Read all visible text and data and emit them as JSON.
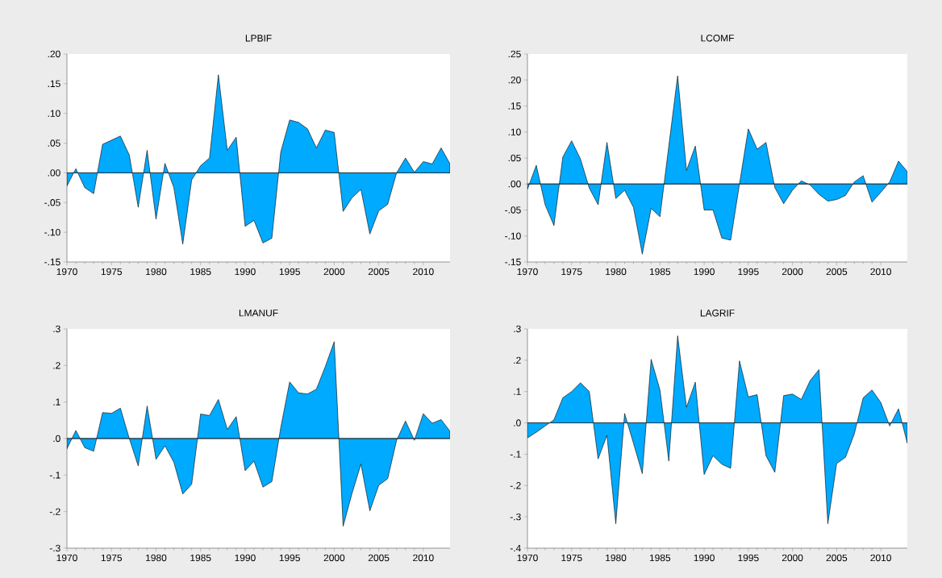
{
  "chart_data": [
    {
      "type": "area",
      "title": "LPBIF",
      "x": [
        1970,
        1971,
        1972,
        1973,
        1974,
        1975,
        1976,
        1977,
        1978,
        1979,
        1980,
        1981,
        1982,
        1983,
        1984,
        1985,
        1986,
        1987,
        1988,
        1989,
        1990,
        1991,
        1992,
        1993,
        1994,
        1995,
        1996,
        1997,
        1998,
        1999,
        2000,
        2001,
        2002,
        2003,
        2004,
        2005,
        2006,
        2007,
        2008,
        2009,
        2010,
        2011,
        2012,
        2013
      ],
      "values": [
        -0.022,
        0.007,
        -0.025,
        -0.035,
        0.048,
        0.055,
        0.062,
        0.03,
        -0.058,
        0.038,
        -0.078,
        0.016,
        -0.025,
        -0.12,
        -0.012,
        0.012,
        0.025,
        0.165,
        0.038,
        0.06,
        -0.09,
        -0.08,
        -0.118,
        -0.11,
        0.035,
        0.089,
        0.085,
        0.074,
        0.042,
        0.072,
        0.068,
        -0.065,
        -0.042,
        -0.028,
        -0.103,
        -0.064,
        -0.053,
        0.0,
        0.025,
        0.001,
        0.019,
        0.015,
        0.042,
        0.015
      ],
      "color": "#00aaff",
      "xlim": [
        1970,
        2013
      ],
      "xticks": [
        1970,
        1975,
        1980,
        1985,
        1990,
        1995,
        2000,
        2005,
        2010
      ],
      "ylim": [
        -0.15,
        0.2
      ],
      "yticks": [
        {
          "value": -0.15,
          "label": "-.15"
        },
        {
          "value": -0.1,
          "label": "-.10"
        },
        {
          "value": -0.05,
          "label": "-.05"
        },
        {
          "value": 0,
          "label": ".00"
        },
        {
          "value": 0.05,
          "label": ".05"
        },
        {
          "value": 0.1,
          "label": ".10"
        },
        {
          "value": 0.15,
          "label": ".15"
        },
        {
          "value": 0.2,
          "label": ".20"
        }
      ],
      "ref_lines": [
        {
          "axis": "y",
          "value": 0,
          "color": "#1f3a4a"
        }
      ]
    },
    {
      "type": "area",
      "title": "LCOMF",
      "x": [
        1970,
        1971,
        1972,
        1973,
        1974,
        1975,
        1976,
        1977,
        1978,
        1979,
        1980,
        1981,
        1982,
        1983,
        1984,
        1985,
        1986,
        1987,
        1988,
        1989,
        1990,
        1991,
        1992,
        1993,
        1994,
        1995,
        1996,
        1997,
        1998,
        1999,
        2000,
        2001,
        2002,
        2003,
        2004,
        2005,
        2006,
        2007,
        2008,
        2009,
        2010,
        2011,
        2012,
        2013
      ],
      "values": [
        -0.01,
        0.036,
        -0.04,
        -0.08,
        0.052,
        0.083,
        0.048,
        -0.008,
        -0.04,
        0.08,
        -0.028,
        -0.012,
        -0.045,
        -0.135,
        -0.047,
        -0.063,
        0.073,
        0.208,
        0.026,
        0.073,
        -0.05,
        -0.05,
        -0.104,
        -0.108,
        0.0,
        0.106,
        0.067,
        0.08,
        -0.007,
        -0.038,
        -0.012,
        0.006,
        -0.002,
        -0.02,
        -0.033,
        -0.03,
        -0.022,
        0.004,
        0.016,
        -0.035,
        -0.016,
        0.004,
        0.044,
        0.024
      ],
      "color": "#00aaff",
      "xlim": [
        1970,
        2013
      ],
      "xticks": [
        1970,
        1975,
        1980,
        1985,
        1990,
        1995,
        2000,
        2005,
        2010
      ],
      "ylim": [
        -0.15,
        0.25
      ],
      "yticks": [
        {
          "value": -0.15,
          "label": "-.15"
        },
        {
          "value": -0.1,
          "label": "-.10"
        },
        {
          "value": -0.05,
          "label": "-.05"
        },
        {
          "value": 0,
          "label": ".00"
        },
        {
          "value": 0.05,
          "label": ".05"
        },
        {
          "value": 0.1,
          "label": ".10"
        },
        {
          "value": 0.15,
          "label": ".15"
        },
        {
          "value": 0.2,
          "label": ".20"
        },
        {
          "value": 0.25,
          "label": ".25"
        }
      ],
      "ref_lines": [
        {
          "axis": "y",
          "value": 0,
          "color": "#1f3a4a"
        }
      ]
    },
    {
      "type": "area",
      "title": "LMANUF",
      "x": [
        1970,
        1971,
        1972,
        1973,
        1974,
        1975,
        1976,
        1977,
        1978,
        1979,
        1980,
        1981,
        1982,
        1983,
        1984,
        1985,
        1986,
        1987,
        1988,
        1989,
        1990,
        1991,
        1992,
        1993,
        1994,
        1995,
        1996,
        1997,
        1998,
        1999,
        2000,
        2001,
        2002,
        2003,
        2004,
        2005,
        2006,
        2007,
        2008,
        2009,
        2010,
        2011,
        2012,
        2013
      ],
      "values": [
        -0.028,
        0.022,
        -0.025,
        -0.035,
        0.071,
        0.069,
        0.083,
        0.0,
        -0.075,
        0.089,
        -0.057,
        -0.02,
        -0.065,
        -0.152,
        -0.125,
        0.067,
        0.063,
        0.107,
        0.025,
        0.06,
        -0.088,
        -0.062,
        -0.133,
        -0.118,
        0.03,
        0.155,
        0.125,
        0.122,
        0.135,
        0.197,
        0.265,
        -0.24,
        -0.15,
        -0.07,
        -0.198,
        -0.128,
        -0.11,
        -0.005,
        0.048,
        -0.005,
        0.068,
        0.042,
        0.052,
        0.02
      ],
      "color": "#00aaff",
      "xlim": [
        1970,
        2013
      ],
      "xticks": [
        1970,
        1975,
        1980,
        1985,
        1990,
        1995,
        2000,
        2005,
        2010
      ],
      "ylim": [
        -0.3,
        0.3
      ],
      "yticks": [
        {
          "value": -0.3,
          "label": "-.3"
        },
        {
          "value": -0.2,
          "label": "-.2"
        },
        {
          "value": -0.1,
          "label": "-.1"
        },
        {
          "value": 0,
          "label": ".0"
        },
        {
          "value": 0.1,
          "label": ".1"
        },
        {
          "value": 0.2,
          "label": ".2"
        },
        {
          "value": 0.3,
          "label": ".3"
        }
      ],
      "ref_lines": [
        {
          "axis": "y",
          "value": 0,
          "color": "#1f3a4a"
        }
      ]
    },
    {
      "type": "area",
      "title": "LAGRIF",
      "x": [
        1970,
        1971,
        1972,
        1973,
        1974,
        1975,
        1976,
        1977,
        1978,
        1979,
        1980,
        1981,
        1982,
        1983,
        1984,
        1985,
        1986,
        1987,
        1988,
        1989,
        1990,
        1991,
        1992,
        1993,
        1994,
        1995,
        1996,
        1997,
        1998,
        1999,
        2000,
        2001,
        2002,
        2003,
        2004,
        2005,
        2006,
        2007,
        2008,
        2009,
        2010,
        2011,
        2012,
        2013
      ],
      "values": [
        -0.048,
        -0.03,
        -0.01,
        0.01,
        0.08,
        0.1,
        0.128,
        0.1,
        -0.115,
        -0.04,
        -0.322,
        0.03,
        -0.065,
        -0.162,
        0.203,
        0.105,
        -0.122,
        0.278,
        0.05,
        0.13,
        -0.165,
        -0.105,
        -0.132,
        -0.145,
        0.198,
        0.083,
        0.09,
        -0.105,
        -0.158,
        0.087,
        0.092,
        0.075,
        0.135,
        0.17,
        -0.322,
        -0.13,
        -0.11,
        -0.035,
        0.08,
        0.105,
        0.065,
        -0.01,
        0.045,
        -0.065
      ],
      "color": "#00aaff",
      "xlim": [
        1970,
        2013
      ],
      "xticks": [
        1970,
        1975,
        1980,
        1985,
        1990,
        1995,
        2000,
        2005,
        2010
      ],
      "ylim": [
        -0.4,
        0.3
      ],
      "yticks": [
        {
          "value": -0.4,
          "label": "-.4"
        },
        {
          "value": -0.3,
          "label": "-.3"
        },
        {
          "value": -0.2,
          "label": "-.2"
        },
        {
          "value": -0.1,
          "label": "-.1"
        },
        {
          "value": 0,
          "label": ".0"
        },
        {
          "value": 0.1,
          "label": ".1"
        },
        {
          "value": 0.2,
          "label": ".2"
        },
        {
          "value": 0.3,
          "label": ".3"
        }
      ],
      "ref_lines": [
        {
          "axis": "y",
          "value": 0,
          "color": "#1f3a4a"
        }
      ]
    }
  ]
}
